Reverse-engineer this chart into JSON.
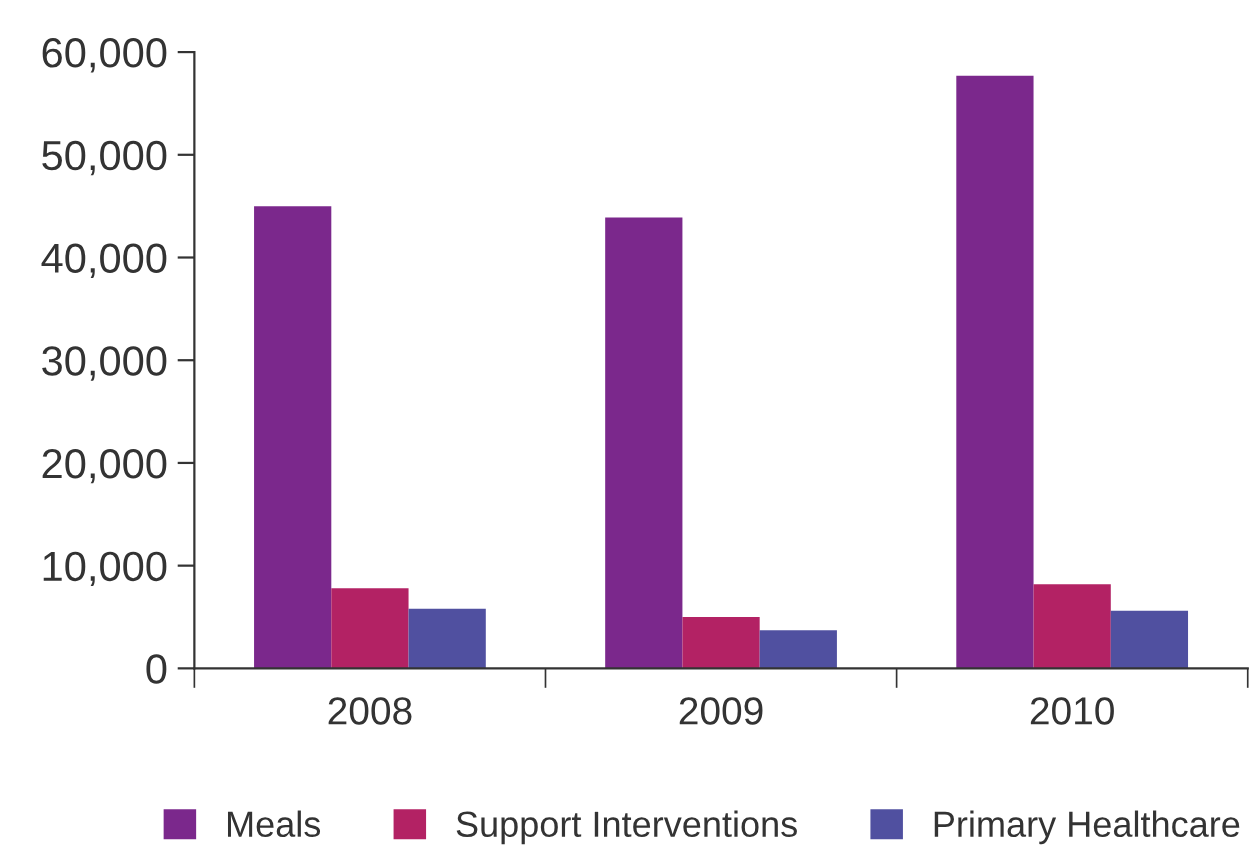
{
  "chart_data": {
    "type": "bar",
    "categories": [
      "2008",
      "2009",
      "2010"
    ],
    "series": [
      {
        "name": "Meals",
        "color": "#7b288c",
        "values": [
          45000,
          43900,
          57700
        ]
      },
      {
        "name": "Support Interventions",
        "color": "#b32264",
        "values": [
          7800,
          5000,
          8200
        ]
      },
      {
        "name": "Primary Healthcare",
        "color": "#5050a0",
        "values": [
          5800,
          3700,
          5600
        ]
      }
    ],
    "ylim": [
      0,
      60000
    ],
    "yticks": [
      {
        "value": 0,
        "label": "0"
      },
      {
        "value": 10000,
        "label": "10,000"
      },
      {
        "value": 20000,
        "label": "20,000"
      },
      {
        "value": 30000,
        "label": "30,000"
      },
      {
        "value": 40000,
        "label": "40,000"
      },
      {
        "value": 50000,
        "label": "50,000"
      },
      {
        "value": 60000,
        "label": "60,000"
      }
    ],
    "grid": false,
    "legend": "bottom"
  }
}
